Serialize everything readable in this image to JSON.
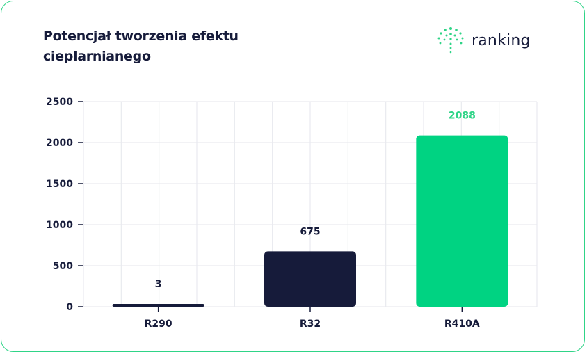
{
  "brand": {
    "name": "ranking",
    "icon": "ranking-logo-icon",
    "color": "#2fd487"
  },
  "chart_data": {
    "type": "bar",
    "title": "Potencjał tworzenia efektu cieplarnianego",
    "categories": [
      "R290",
      "R32",
      "R410A"
    ],
    "values": [
      3,
      675,
      2088
    ],
    "data_labels": [
      "3",
      "675",
      "2088"
    ],
    "bar_colors": [
      "#161b3a",
      "#161b3a",
      "#00d382"
    ],
    "label_colors": [
      "#161b3a",
      "#161b3a",
      "#2fd487"
    ],
    "yticks": [
      0,
      500,
      1000,
      1500,
      2000,
      2500
    ],
    "ylim": [
      0,
      2500
    ],
    "xlabel": "",
    "ylabel": "",
    "grid": true,
    "legend": "none"
  }
}
